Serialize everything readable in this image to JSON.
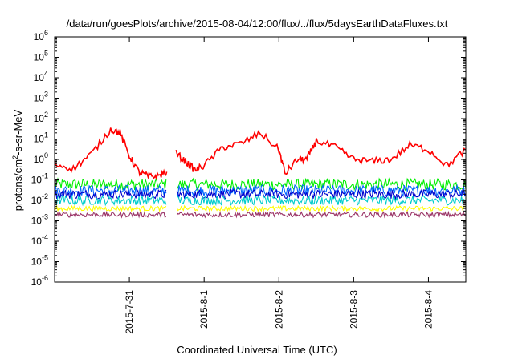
{
  "chart_data": {
    "type": "line",
    "title": "/data/run/goesPlots/archive/2015-08-04/12:00/flux/../flux/5daysEarthDataFluxes.txt",
    "xlabel": "Coordinated Universal Time (UTC)",
    "ylabel": {
      "prefix": "protons/cm",
      "sup": "2",
      "suffix": "-s-sr-MeV"
    },
    "yscale": "log",
    "ylim": [
      1e-06,
      1000000.0
    ],
    "y_ticks": [
      {
        "base": "10",
        "exp": "-6"
      },
      {
        "base": "10",
        "exp": "-5"
      },
      {
        "base": "10",
        "exp": "-4"
      },
      {
        "base": "10",
        "exp": "-3"
      },
      {
        "base": "10",
        "exp": "-2"
      },
      {
        "base": "10",
        "exp": "-1"
      },
      {
        "base": "10",
        "exp": "0"
      },
      {
        "base": "10",
        "exp": "1"
      },
      {
        "base": "10",
        "exp": "2"
      },
      {
        "base": "10",
        "exp": "3"
      },
      {
        "base": "10",
        "exp": "4"
      },
      {
        "base": "10",
        "exp": "5"
      },
      {
        "base": "10",
        "exp": "6"
      }
    ],
    "xlim": [
      "2015-07-30 00:00",
      "2015-08-04 12:00"
    ],
    "x_ticks": [
      "2015-7-31",
      "2015-8-1",
      "2015-8-2",
      "2015-8-3",
      "2015-8-4"
    ],
    "data_gap": [
      "2015-07-31 12:00",
      "2015-07-31 15:00"
    ],
    "grid": false,
    "legend": "none",
    "series": [
      {
        "color": "#ff0000",
        "x": [
          "2015-07-30 00:00",
          "2015-07-30 06:00",
          "2015-07-30 12:00",
          "2015-07-30 18:00",
          "2015-07-30 21:00",
          "2015-07-31 00:00",
          "2015-07-31 03:00",
          "2015-07-31 06:00",
          "2015-07-31 09:00",
          "2015-07-31 12:00",
          "2015-07-31 15:00",
          "2015-07-31 18:00",
          "2015-07-31 21:00",
          "2015-08-01 00:00",
          "2015-08-01 06:00",
          "2015-08-01 12:00",
          "2015-08-01 18:00",
          "2015-08-02 00:00",
          "2015-08-02 02:00",
          "2015-08-02 06:00",
          "2015-08-02 09:00",
          "2015-08-02 12:00",
          "2015-08-02 18:00",
          "2015-08-03 00:00",
          "2015-08-03 06:00",
          "2015-08-03 12:00",
          "2015-08-03 18:00",
          "2015-08-04 00:00",
          "2015-08-04 06:00",
          "2015-08-04 12:00"
        ],
        "y": [
          0.6,
          0.35,
          2,
          30,
          20,
          1.5,
          0.25,
          0.15,
          0.15,
          0.25,
          2,
          0.8,
          0.3,
          0.5,
          4,
          6,
          20,
          3,
          0.2,
          1,
          1,
          8,
          4,
          1,
          0.8,
          1,
          5,
          3,
          0.5,
          3
        ]
      },
      {
        "color": "#00ee00",
        "x": [
          "2015-07-30 00:00",
          "2015-08-04 12:00"
        ],
        "y": [
          0.06,
          0.06
        ]
      },
      {
        "color": "#0066ff",
        "x": [
          "2015-07-30 00:00",
          "2015-08-04 12:00"
        ],
        "y": [
          0.03,
          0.03
        ]
      },
      {
        "color": "#0000cc",
        "x": [
          "2015-07-30 00:00",
          "2015-08-04 12:00"
        ],
        "y": [
          0.02,
          0.02
        ]
      },
      {
        "color": "#00cccc",
        "x": [
          "2015-07-30 00:00",
          "2015-08-04 12:00"
        ],
        "y": [
          0.01,
          0.01
        ]
      },
      {
        "color": "#ffff00",
        "x": [
          "2015-07-30 00:00",
          "2015-08-04 12:00"
        ],
        "y": [
          0.004,
          0.004
        ]
      },
      {
        "color": "#993366",
        "x": [
          "2015-07-30 00:00",
          "2015-08-04 12:00"
        ],
        "y": [
          0.002,
          0.002
        ]
      }
    ]
  }
}
